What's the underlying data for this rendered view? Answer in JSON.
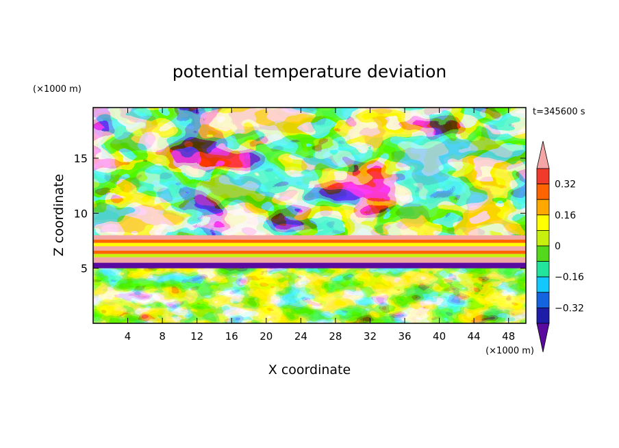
{
  "chart_data": {
    "type": "heatmap",
    "title": "potential temperature deviation",
    "time_label": "t=345600 s",
    "xlabel": "X coordinate",
    "ylabel": "Z coordinate",
    "x_unit_label": "(×1000 m)",
    "y_unit_label": "(×1000 m)",
    "xlim": [
      0,
      50
    ],
    "ylim": [
      0,
      19.6
    ],
    "xticks": [
      4,
      8,
      12,
      16,
      20,
      24,
      28,
      32,
      36,
      40,
      44,
      48
    ],
    "yticks": [
      5,
      10,
      15
    ],
    "colorbar": {
      "levels": [
        -0.4,
        -0.32,
        -0.24,
        -0.16,
        -0.08,
        0,
        0.08,
        0.16,
        0.24,
        0.32,
        0.4
      ],
      "labeled_levels": [
        0.32,
        0.16,
        0,
        -0.16,
        -0.32
      ],
      "colors": [
        "#5a0a9e",
        "#1d1da8",
        "#1464e0",
        "#12c8ff",
        "#22e49a",
        "#54d81c",
        "#c8f00e",
        "#ffff00",
        "#ffa800",
        "#ff6400",
        "#f03a2a",
        "#f4a6a6"
      ],
      "extend": "both"
    },
    "description_regions": [
      {
        "z_range": [
          0,
          5
        ],
        "pattern": "mixed turbulent"
      },
      {
        "z_range": [
          5,
          8
        ],
        "pattern": "banded"
      },
      {
        "z_range": [
          8,
          19.6
        ],
        "pattern": "large blobs"
      }
    ]
  }
}
